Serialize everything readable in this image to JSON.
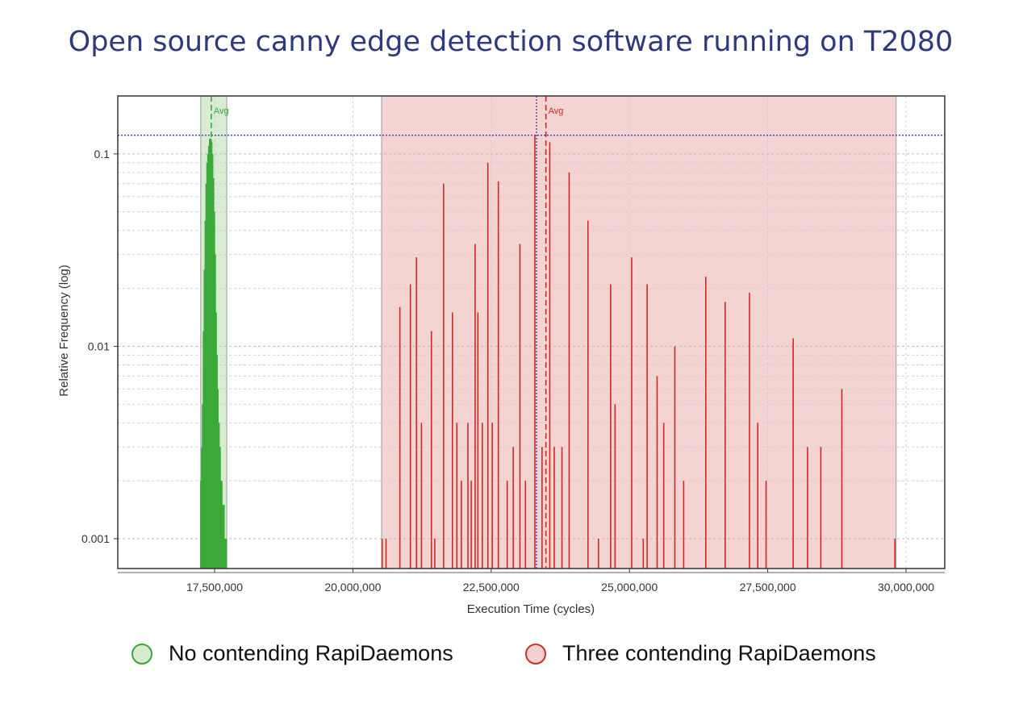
{
  "title": "Open source canny edge detection software running on T2080",
  "colors": {
    "title": "#2e3a7c",
    "green": "#3aa93a",
    "green_band": "#d8ecd3",
    "red": "#cc2a22",
    "red_band": "#f4d3d3",
    "reference": "#3a3ab0"
  },
  "legend": {
    "green_label": "No contending RapiDaemons",
    "red_label": "Three contending RapiDaemons"
  },
  "chart_data": {
    "type": "bar",
    "title": "Open source canny edge detection software running on T2080",
    "xlabel": "Execution Time (cycles)",
    "ylabel": "Relative Frequency (log)",
    "xlim": [
      15750000,
      30700000
    ],
    "ylim": [
      0.0007,
      0.2
    ],
    "yscale": "log",
    "x_ticks": [
      17500000,
      20000000,
      22500000,
      25000000,
      27500000,
      30000000
    ],
    "x_tick_labels": [
      "17,500,000",
      "20,000,000",
      "22,500,000",
      "25,000,000",
      "27,500,000",
      "30,000,000"
    ],
    "y_ticks": [
      0.001,
      0.01,
      0.1
    ],
    "y_tick_labels": [
      "0.001",
      "0.01",
      "0.1"
    ],
    "grid": true,
    "reference_lines": {
      "x": 23320000,
      "y": 0.125
    },
    "series": [
      {
        "name": "No contending RapiDaemons",
        "range": [
          17250000,
          17720000
        ],
        "avg": 17440000,
        "avg_label": "Avg",
        "points": [
          [
            17262000,
            0.002
          ],
          [
            17278000,
            0.003
          ],
          [
            17294000,
            0.005
          ],
          [
            17310000,
            0.012
          ],
          [
            17326000,
            0.025
          ],
          [
            17342000,
            0.045
          ],
          [
            17358000,
            0.07
          ],
          [
            17374000,
            0.09
          ],
          [
            17390000,
            0.1
          ],
          [
            17406000,
            0.11
          ],
          [
            17422000,
            0.12
          ],
          [
            17438000,
            0.115
          ],
          [
            17454000,
            0.1
          ],
          [
            17470000,
            0.075
          ],
          [
            17486000,
            0.05
          ],
          [
            17502000,
            0.03
          ],
          [
            17518000,
            0.015
          ],
          [
            17534000,
            0.009
          ],
          [
            17550000,
            0.006
          ],
          [
            17570000,
            0.004
          ],
          [
            17590000,
            0.003
          ],
          [
            17620000,
            0.002
          ],
          [
            17660000,
            0.0015
          ],
          [
            17700000,
            0.001
          ]
        ]
      },
      {
        "name": "Three contending RapiDaemons",
        "range": [
          20520000,
          29820000
        ],
        "avg": 23490000,
        "avg_label": "Avg",
        "points": [
          [
            20530000,
            0.001
          ],
          [
            20600000,
            0.001
          ],
          [
            20850000,
            0.016
          ],
          [
            21040000,
            0.021
          ],
          [
            21150000,
            0.029
          ],
          [
            21240000,
            0.004
          ],
          [
            21420000,
            0.012
          ],
          [
            21480000,
            0.001
          ],
          [
            21640000,
            0.07
          ],
          [
            21800000,
            0.015
          ],
          [
            21880000,
            0.004
          ],
          [
            21960000,
            0.002
          ],
          [
            22080000,
            0.004
          ],
          [
            22140000,
            0.002
          ],
          [
            22210000,
            0.034
          ],
          [
            22260000,
            0.015
          ],
          [
            22340000,
            0.004
          ],
          [
            22440000,
            0.09
          ],
          [
            22520000,
            0.004
          ],
          [
            22630000,
            0.072
          ],
          [
            22790000,
            0.002
          ],
          [
            22900000,
            0.003
          ],
          [
            23020000,
            0.034
          ],
          [
            23120000,
            0.002
          ],
          [
            23290000,
            0.125
          ],
          [
            23420000,
            0.003
          ],
          [
            23560000,
            0.115
          ],
          [
            23640000,
            0.003
          ],
          [
            23780000,
            0.003
          ],
          [
            23910000,
            0.08
          ],
          [
            24250000,
            0.045
          ],
          [
            24440000,
            0.001
          ],
          [
            24660000,
            0.021
          ],
          [
            24740000,
            0.005
          ],
          [
            25040000,
            0.029
          ],
          [
            25250000,
            0.001
          ],
          [
            25320000,
            0.021
          ],
          [
            25500000,
            0.007
          ],
          [
            25620000,
            0.004
          ],
          [
            25820000,
            0.01
          ],
          [
            25980000,
            0.002
          ],
          [
            26380000,
            0.023
          ],
          [
            26730000,
            0.017
          ],
          [
            27170000,
            0.019
          ],
          [
            27320000,
            0.004
          ],
          [
            27470000,
            0.002
          ],
          [
            27960000,
            0.011
          ],
          [
            28220000,
            0.003
          ],
          [
            28460000,
            0.003
          ],
          [
            28840000,
            0.006
          ],
          [
            29800000,
            0.001
          ]
        ]
      }
    ]
  }
}
